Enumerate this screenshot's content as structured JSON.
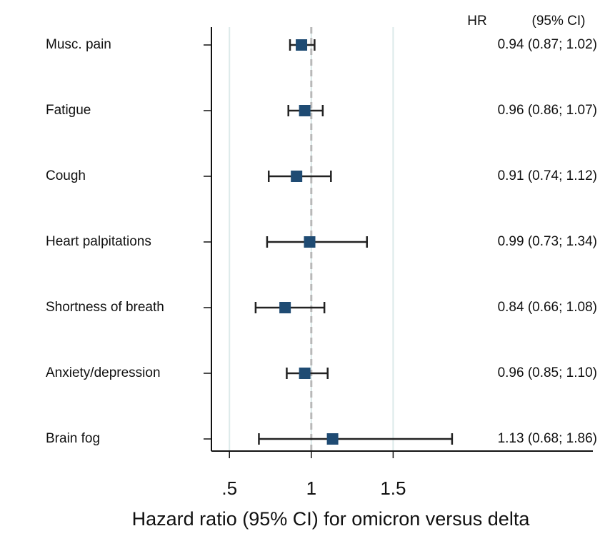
{
  "chart_data": {
    "type": "forest",
    "column_headers": [
      "HR",
      "(95% CI)"
    ],
    "categories": [
      "Musc. pain",
      "Fatigue",
      "Cough",
      "Heart palpitations",
      "Shortness of breath",
      "Anxiety/depression",
      "Brain fog"
    ],
    "values": [
      0.94,
      0.96,
      0.91,
      0.99,
      0.84,
      0.96,
      1.13
    ],
    "lower": [
      0.87,
      0.86,
      0.74,
      0.73,
      0.66,
      0.85,
      0.68
    ],
    "upper": [
      1.02,
      1.07,
      1.12,
      1.34,
      1.08,
      1.1,
      1.86
    ],
    "value_labels": [
      "0.94 (0.87; 1.02)",
      "0.96 (0.86; 1.07)",
      "0.91 (0.74; 1.12)",
      "0.99 (0.73; 1.34)",
      "0.84 (0.66; 1.08)",
      "0.96 (0.85; 1.10)",
      "1.13 (0.68; 1.86)"
    ],
    "xlabel": "Hazard ratio (95% CI) for omicron versus delta",
    "xlim": [
      0.39,
      2.72
    ],
    "xticks": [
      {
        "value": 0.5,
        "label": ".5"
      },
      1,
      {
        "value": 1.5,
        "label": "1.5"
      }
    ],
    "reference_line": 1,
    "grid": true,
    "color": "#1f4b73"
  }
}
